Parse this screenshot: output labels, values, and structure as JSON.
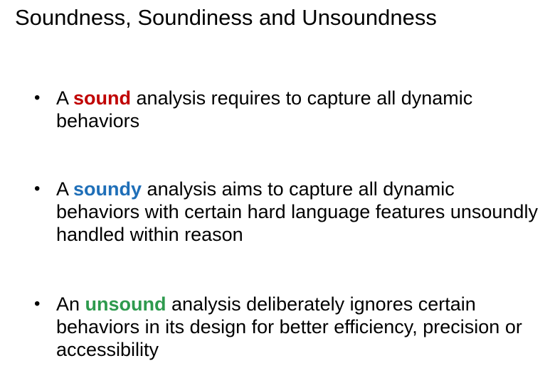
{
  "slide": {
    "title": "Soundness, Soundiness and Unsoundness",
    "bullets": [
      {
        "prefix": "A ",
        "keyword": "sound",
        "keyword_color": "#c00000",
        "rest": " analysis requires to capture all dynamic behaviors"
      },
      {
        "prefix": "A ",
        "keyword": "soundy",
        "keyword_color": "#1f6fb8",
        "rest": " analysis aims to capture all dynamic behaviors with certain hard language features unsoundly handled within reason"
      },
      {
        "prefix": "An ",
        "keyword": "unsound",
        "keyword_color": "#2e9a4e",
        "rest": " analysis deliberately ignores certain behaviors in its design for better efficiency, precision or accessibility"
      }
    ]
  }
}
